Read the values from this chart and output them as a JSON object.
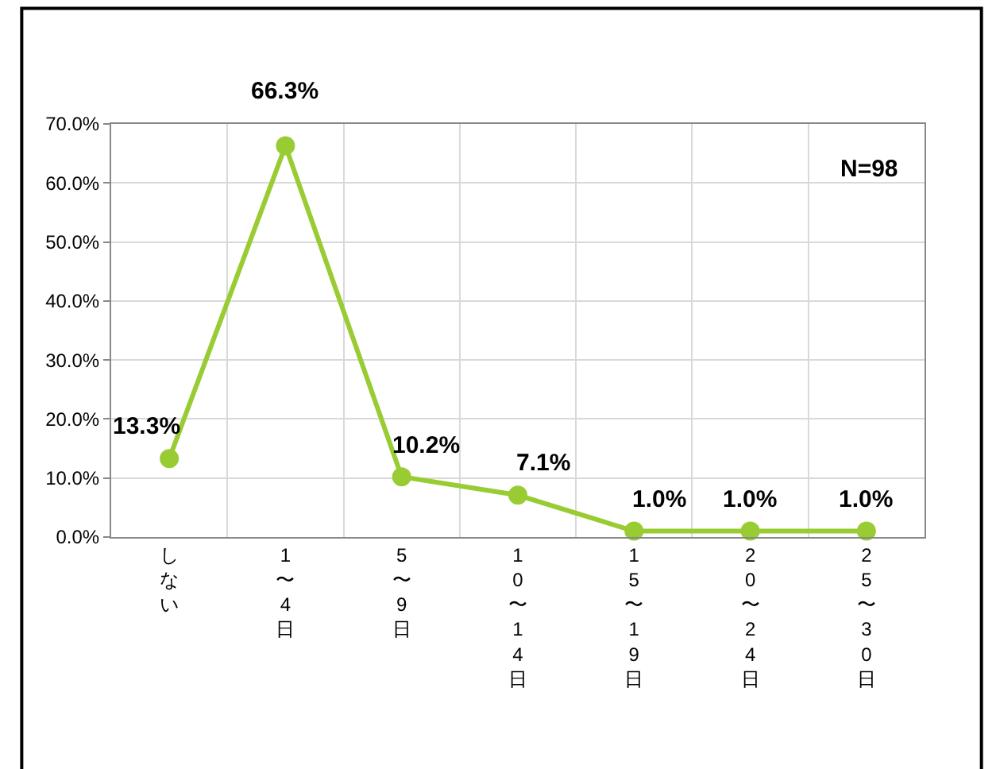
{
  "chart_data": {
    "type": "line",
    "categories": [
      "しない",
      "1〜4日",
      "5〜9日",
      "10〜14日",
      "15〜19日",
      "20〜24日",
      "25〜30日"
    ],
    "series": [
      {
        "color": "#99cc33",
        "values": [
          13.3,
          66.3,
          10.2,
          7.1,
          1.0,
          1.0,
          1.0
        ],
        "value_labels": [
          "13.3%",
          "66.3%",
          "10.2%",
          "7.1%",
          "1.0%",
          "1.0%",
          "1.0%"
        ]
      }
    ],
    "ylim": [
      0,
      70
    ],
    "yticks": [
      {
        "value": 0,
        "label": "0.0%"
      },
      {
        "value": 10,
        "label": "10.0%"
      },
      {
        "value": 20,
        "label": "20.0%"
      },
      {
        "value": 30,
        "label": "30.0%"
      },
      {
        "value": 40,
        "label": "40.0%"
      },
      {
        "value": 50,
        "label": "50.0%"
      },
      {
        "value": 60,
        "label": "60.0%"
      },
      {
        "value": 70,
        "label": "70.0%"
      }
    ],
    "grid": true,
    "marker": "circle",
    "line_style": "solid",
    "annotations": [
      "N=98"
    ]
  }
}
